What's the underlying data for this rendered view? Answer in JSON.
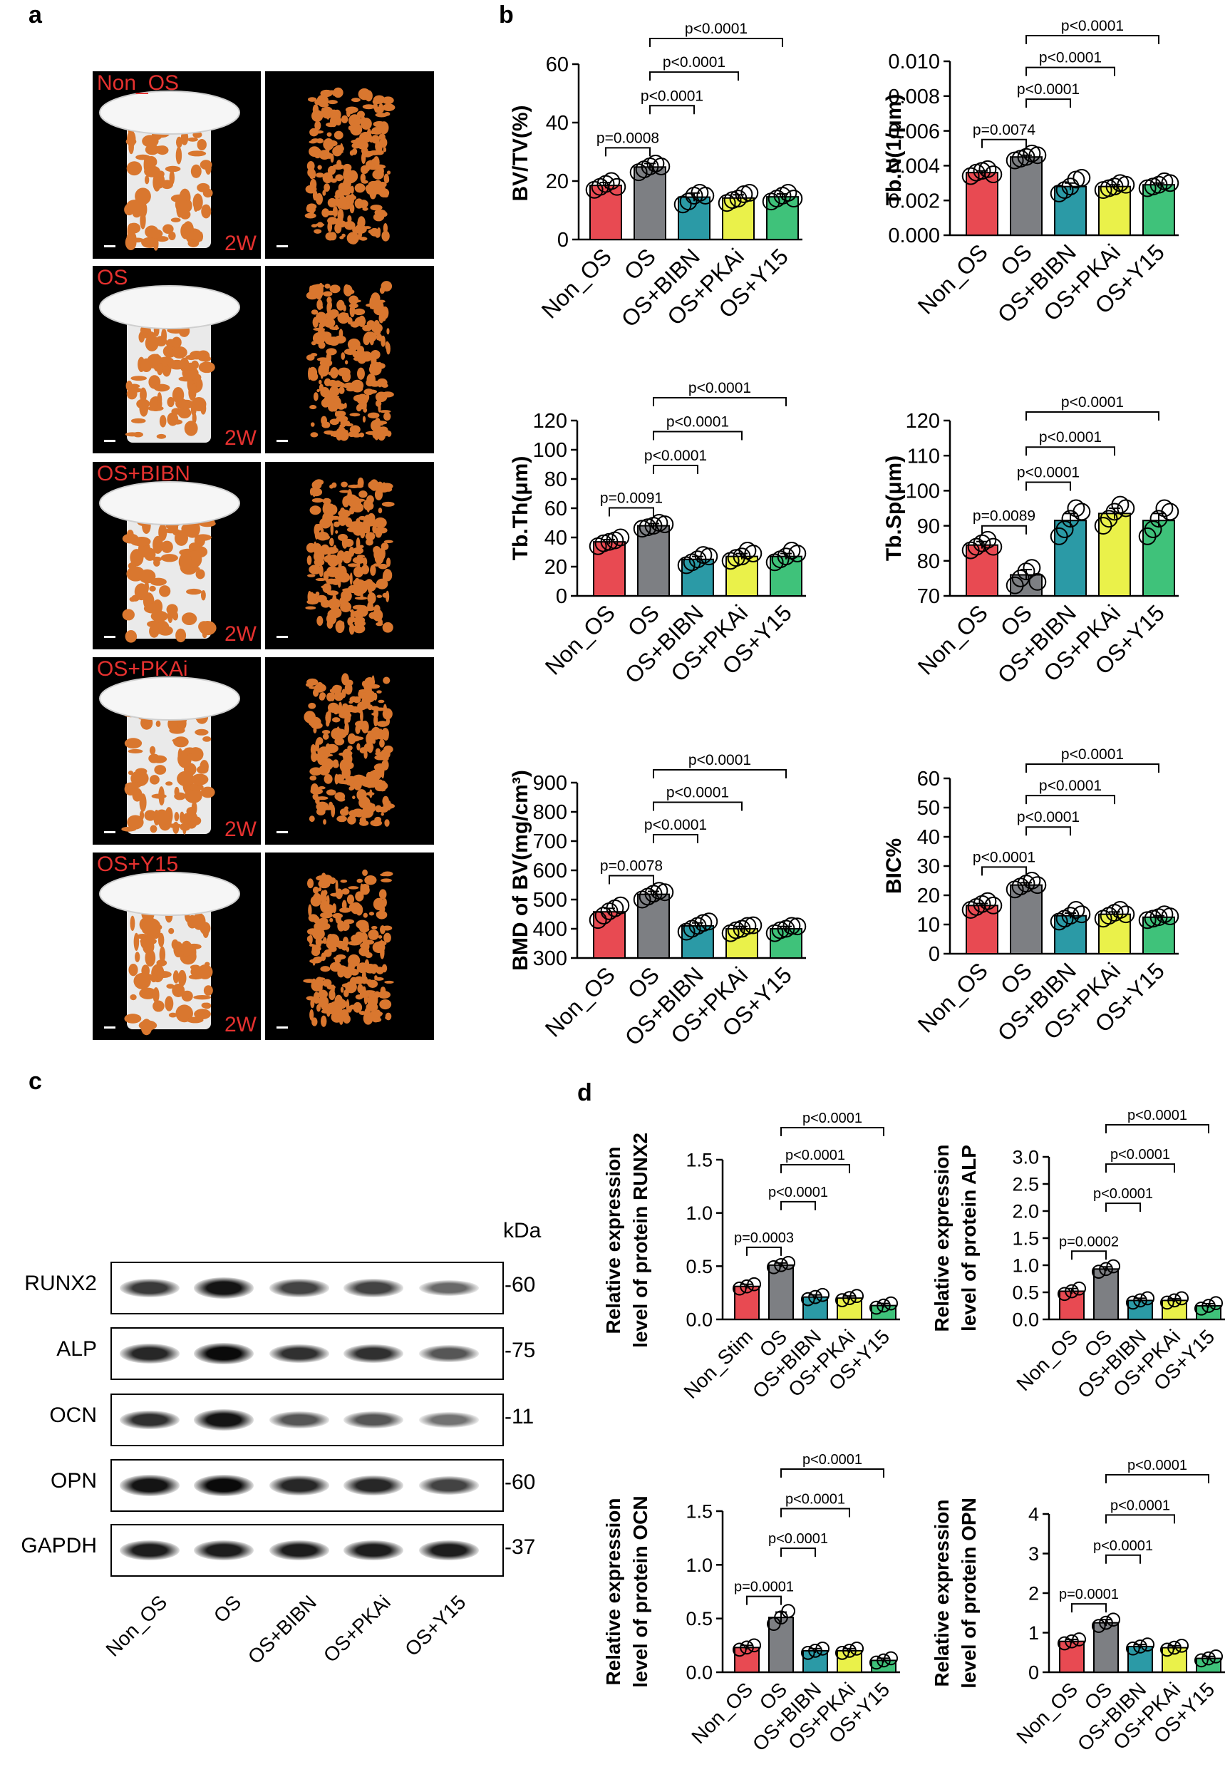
{
  "panels": {
    "a": "a",
    "b": "b",
    "c": "c",
    "d": "d"
  },
  "microct": {
    "time_label": "2W",
    "rows": [
      {
        "label": "Non_OS"
      },
      {
        "label": "OS"
      },
      {
        "label": "OS+BIBN"
      },
      {
        "label": "OS+PKAi"
      },
      {
        "label": "OS+Y15"
      }
    ],
    "colors": {
      "background": "#000000",
      "implant": "#eaeaea",
      "bone": "#d9772f",
      "label": "#e5312f"
    }
  },
  "groups_b": [
    "Non_OS",
    "OS",
    "OS+BIBN",
    "OS+PKAi",
    "OS+Y15"
  ],
  "bar_colors": [
    "#e84a52",
    "#7d7f83",
    "#2b9aa6",
    "#eaf14a",
    "#3fc27a"
  ],
  "chart_data": [
    {
      "type": "bar",
      "panel": "b",
      "id": "bvtv",
      "categories": [
        "Non_OS",
        "OS",
        "OS+BIBN",
        "OS+PKAi",
        "OS+Y15"
      ],
      "values": [
        18.5,
        24.8,
        14.5,
        14.2,
        14.6
      ],
      "errors": [
        1.0,
        1.2,
        1.4,
        1.1,
        1.0
      ],
      "points": [
        [
          17,
          18,
          19,
          20,
          18
        ],
        [
          23,
          24,
          25,
          26,
          25
        ],
        [
          12,
          13,
          15,
          16,
          15
        ],
        [
          12.5,
          13.5,
          14,
          15.5,
          16
        ],
        [
          13,
          14,
          15,
          16,
          14
        ]
      ],
      "ylabel": "BV/TV(%)",
      "ylim": [
        0,
        60
      ],
      "yticks": [
        "0",
        "20",
        "40",
        "60"
      ],
      "brackets": [
        {
          "from": 0,
          "to": 1,
          "text": "p=0.0008"
        },
        {
          "from": 1,
          "to": 2,
          "text": "p<0.0001"
        },
        {
          "from": 1,
          "to": 3,
          "text": "p<0.0001"
        },
        {
          "from": 1,
          "to": 4,
          "text": "p<0.0001"
        }
      ]
    },
    {
      "type": "bar",
      "panel": "b",
      "id": "tbn",
      "categories": [
        "Non_OS",
        "OS",
        "OS+BIBN",
        "OS+PKAi",
        "OS+Y15"
      ],
      "values": [
        0.0036,
        0.0045,
        0.0028,
        0.0028,
        0.0029
      ],
      "errors": [
        0.0001,
        0.0001,
        0.0002,
        0.0001,
        0.0001
      ],
      "points": [
        [
          0.0034,
          0.0036,
          0.0037,
          0.0038,
          0.0035
        ],
        [
          0.0043,
          0.0044,
          0.0045,
          0.0047,
          0.0046
        ],
        [
          0.0024,
          0.0026,
          0.0028,
          0.0032,
          0.0033
        ],
        [
          0.0026,
          0.0027,
          0.0028,
          0.003,
          0.0029
        ],
        [
          0.0027,
          0.0028,
          0.0029,
          0.0031,
          0.003
        ]
      ],
      "ylabel": "Tb.N(1/μm)",
      "ylim": [
        0,
        0.01
      ],
      "yticks": [
        "0.000",
        "0.002",
        "0.004",
        "0.006",
        "0.008",
        "0.010"
      ],
      "brackets": [
        {
          "from": 0,
          "to": 1,
          "text": "p=0.0074"
        },
        {
          "from": 1,
          "to": 2,
          "text": "p<0.0001"
        },
        {
          "from": 1,
          "to": 3,
          "text": "p<0.0001"
        },
        {
          "from": 1,
          "to": 4,
          "text": "p<0.0001"
        }
      ]
    },
    {
      "type": "bar",
      "panel": "b",
      "id": "tbth",
      "categories": [
        "Non_OS",
        "OS",
        "OS+BIBN",
        "OS+PKAi",
        "OS+Y15"
      ],
      "values": [
        37,
        48,
        25,
        27,
        27
      ],
      "errors": [
        1.5,
        1.5,
        2,
        2,
        2
      ],
      "points": [
        [
          34,
          36,
          37,
          38,
          40
        ],
        [
          46,
          47,
          48,
          50,
          49
        ],
        [
          21,
          23,
          25,
          28,
          27
        ],
        [
          24,
          26,
          27,
          31,
          29
        ],
        [
          23,
          25,
          27,
          31,
          29
        ]
      ],
      "ylabel": "Tb.Th(μm)",
      "ylim": [
        0,
        120
      ],
      "yticks": [
        "0",
        "20",
        "40",
        "60",
        "80",
        "100",
        "120"
      ],
      "brackets": [
        {
          "from": 0,
          "to": 1,
          "text": "p=0.0091"
        },
        {
          "from": 1,
          "to": 2,
          "text": "p<0.0001"
        },
        {
          "from": 1,
          "to": 3,
          "text": "p<0.0001"
        },
        {
          "from": 1,
          "to": 4,
          "text": "p<0.0001"
        }
      ]
    },
    {
      "type": "bar",
      "panel": "b",
      "id": "tbsp",
      "categories": [
        "Non_OS",
        "OS",
        "OS+BIBN",
        "OS+PKAi",
        "OS+Y15"
      ],
      "values": [
        84.5,
        76,
        91.5,
        93.5,
        91.5
      ],
      "errors": [
        1,
        1.5,
        2,
        1.5,
        2
      ],
      "points": [
        [
          83,
          84,
          85,
          86,
          84
        ],
        [
          73,
          75,
          77,
          78,
          74
        ],
        [
          87,
          89,
          92,
          95,
          94
        ],
        [
          90,
          92,
          94,
          96,
          95
        ],
        [
          87,
          89,
          92,
          95,
          94
        ]
      ],
      "ylabel": "Tb.Sp(μm)",
      "ylim": [
        70,
        120
      ],
      "yticks": [
        "70",
        "80",
        "90",
        "100",
        "110",
        "120"
      ],
      "brackets": [
        {
          "from": 0,
          "to": 1,
          "text": "p=0.0089"
        },
        {
          "from": 1,
          "to": 2,
          "text": "p<0.0001"
        },
        {
          "from": 1,
          "to": 3,
          "text": "p<0.0001"
        },
        {
          "from": 1,
          "to": 4,
          "text": "p<0.0001"
        }
      ]
    },
    {
      "type": "bar",
      "panel": "b",
      "id": "bmd",
      "categories": [
        "Non_OS",
        "OS",
        "OS+BIBN",
        "OS+PKAi",
        "OS+Y15"
      ],
      "values": [
        458,
        518,
        410,
        400,
        400
      ],
      "errors": [
        12,
        10,
        10,
        8,
        8
      ],
      "points": [
        [
          430,
          445,
          460,
          470,
          480
        ],
        [
          500,
          510,
          520,
          530,
          525
        ],
        [
          390,
          400,
          410,
          420,
          425
        ],
        [
          385,
          395,
          400,
          410,
          412
        ],
        [
          385,
          395,
          400,
          410,
          408
        ]
      ],
      "ylabel": "BMD of BV(mg/cm³)",
      "ylim": [
        300,
        900
      ],
      "yticks": [
        "300",
        "400",
        "500",
        "600",
        "700",
        "800",
        "900"
      ],
      "brackets": [
        {
          "from": 0,
          "to": 1,
          "text": "p=0.0078"
        },
        {
          "from": 1,
          "to": 2,
          "text": "p<0.0001"
        },
        {
          "from": 1,
          "to": 3,
          "text": "p<0.0001"
        },
        {
          "from": 1,
          "to": 4,
          "text": "p<0.0001"
        }
      ]
    },
    {
      "type": "bar",
      "panel": "b",
      "id": "bic",
      "categories": [
        "Non_OS",
        "OS",
        "OS+BIBN",
        "OS+PKAi",
        "OS+Y15"
      ],
      "values": [
        16.5,
        23.5,
        13,
        13.5,
        12.5
      ],
      "errors": [
        0.7,
        0.8,
        0.9,
        0.8,
        0.5
      ],
      "points": [
        [
          15,
          16,
          17,
          18,
          16.5
        ],
        [
          22,
          23,
          24,
          25,
          23.5
        ],
        [
          11,
          12,
          13,
          15,
          13.5
        ],
        [
          12,
          13,
          14,
          15,
          13.5
        ],
        [
          11.5,
          12,
          12.5,
          13.5,
          12.8
        ]
      ],
      "ylabel": "BIC%",
      "ylim": [
        0,
        60
      ],
      "yticks": [
        "0",
        "10",
        "20",
        "30",
        "40",
        "50",
        "60"
      ],
      "brackets": [
        {
          "from": 0,
          "to": 1,
          "text": "p<0.0001"
        },
        {
          "from": 1,
          "to": 2,
          "text": "p<0.0001"
        },
        {
          "from": 1,
          "to": 3,
          "text": "p<0.0001"
        },
        {
          "from": 1,
          "to": 4,
          "text": "p<0.0001"
        }
      ]
    },
    {
      "type": "bar",
      "panel": "d",
      "id": "runx2",
      "categories": [
        "Non_Stim",
        "OS",
        "OS+BIBN",
        "OS+PKAi",
        "OS+Y15"
      ],
      "values": [
        0.31,
        0.51,
        0.21,
        0.2,
        0.13
      ],
      "errors": [
        0.02,
        0.02,
        0.02,
        0.02,
        0.02
      ],
      "points": [
        [
          0.29,
          0.31,
          0.33
        ],
        [
          0.49,
          0.51,
          0.53
        ],
        [
          0.19,
          0.21,
          0.23
        ],
        [
          0.18,
          0.2,
          0.22
        ],
        [
          0.11,
          0.13,
          0.15
        ]
      ],
      "ylabel": [
        "Relative expression",
        "level of protein RUNX2"
      ],
      "ylim": [
        0,
        1.5
      ],
      "yticks": [
        "0.0",
        "0.5",
        "1.0",
        "1.5"
      ],
      "brackets": [
        {
          "from": 0,
          "to": 1,
          "text": "p=0.0003"
        },
        {
          "from": 1,
          "to": 2,
          "text": "p<0.0001"
        },
        {
          "from": 1,
          "to": 3,
          "text": "p<0.0001"
        },
        {
          "from": 1,
          "to": 4,
          "text": "p<0.0001"
        }
      ]
    },
    {
      "type": "bar",
      "panel": "d",
      "id": "alp",
      "categories": [
        "Non_OS",
        "OS",
        "OS+BIBN",
        "OS+PKAi",
        "OS+Y15"
      ],
      "values": [
        0.52,
        0.93,
        0.35,
        0.35,
        0.25
      ],
      "errors": [
        0.05,
        0.04,
        0.04,
        0.03,
        0.04
      ],
      "points": [
        [
          0.47,
          0.52,
          0.57
        ],
        [
          0.88,
          0.93,
          0.98
        ],
        [
          0.31,
          0.35,
          0.39
        ],
        [
          0.31,
          0.35,
          0.39
        ],
        [
          0.2,
          0.25,
          0.3
        ]
      ],
      "ylabel": [
        "Relative expression",
        "level of protein ALP"
      ],
      "ylim": [
        0,
        3.0
      ],
      "yticks": [
        "0.0",
        "0.5",
        "1.0",
        "1.5",
        "2.0",
        "2.5",
        "3.0"
      ],
      "brackets": [
        {
          "from": 0,
          "to": 1,
          "text": "p=0.0002"
        },
        {
          "from": 1,
          "to": 2,
          "text": "p<0.0001"
        },
        {
          "from": 1,
          "to": 3,
          "text": "p<0.0001"
        },
        {
          "from": 1,
          "to": 4,
          "text": "p<0.0001"
        }
      ]
    },
    {
      "type": "bar",
      "panel": "d",
      "id": "ocn",
      "categories": [
        "Non_OS",
        "OS",
        "OS+BIBN",
        "OS+PKAi",
        "OS+Y15"
      ],
      "values": [
        0.23,
        0.51,
        0.2,
        0.2,
        0.11
      ],
      "errors": [
        0.02,
        0.05,
        0.02,
        0.02,
        0.02
      ],
      "points": [
        [
          0.21,
          0.23,
          0.25
        ],
        [
          0.45,
          0.51,
          0.57
        ],
        [
          0.18,
          0.2,
          0.22
        ],
        [
          0.18,
          0.2,
          0.22
        ],
        [
          0.09,
          0.11,
          0.13
        ]
      ],
      "ylabel": [
        "Relative expression",
        "level of protein OCN"
      ],
      "ylim": [
        0,
        1.5
      ],
      "yticks": [
        "0.0",
        "0.5",
        "1.0",
        "1.5"
      ],
      "brackets": [
        {
          "from": 0,
          "to": 1,
          "text": "p=0.0001"
        },
        {
          "from": 1,
          "to": 2,
          "text": "p<0.0001"
        },
        {
          "from": 1,
          "to": 3,
          "text": "p<0.0001"
        },
        {
          "from": 1,
          "to": 4,
          "text": "p<0.0001"
        }
      ]
    },
    {
      "type": "bar",
      "panel": "d",
      "id": "opn",
      "categories": [
        "Non_OS",
        "OS",
        "OS+BIBN",
        "OS+PKAi",
        "OS+Y15"
      ],
      "values": [
        0.78,
        1.25,
        0.65,
        0.62,
        0.35
      ],
      "errors": [
        0.05,
        0.08,
        0.05,
        0.05,
        0.05
      ],
      "points": [
        [
          0.73,
          0.78,
          0.83
        ],
        [
          1.17,
          1.25,
          1.33
        ],
        [
          0.6,
          0.65,
          0.7
        ],
        [
          0.57,
          0.62,
          0.67
        ],
        [
          0.3,
          0.35,
          0.4
        ]
      ],
      "ylabel": [
        "Relative expression",
        "level of protein OPN"
      ],
      "ylim": [
        0,
        4
      ],
      "yticks": [
        "0",
        "1",
        "2",
        "3",
        "4"
      ],
      "brackets": [
        {
          "from": 0,
          "to": 1,
          "text": "p=0.0001"
        },
        {
          "from": 1,
          "to": 2,
          "text": "p<0.0001"
        },
        {
          "from": 1,
          "to": 3,
          "text": "p<0.0001"
        },
        {
          "from": 1,
          "to": 4,
          "text": "p<0.0001"
        }
      ]
    }
  ],
  "western_blot": {
    "unit": "kDa",
    "lanes": [
      "Non_OS",
      "OS",
      "OS+BIBN",
      "OS+PKAi",
      "OS+Y15"
    ],
    "proteins": [
      {
        "name": "RUNX2",
        "mw": "-60",
        "intensity": [
          0.75,
          0.95,
          0.7,
          0.7,
          0.5
        ]
      },
      {
        "name": "ALP",
        "mw": "-75",
        "intensity": [
          0.85,
          1.0,
          0.8,
          0.8,
          0.6
        ]
      },
      {
        "name": "OCN",
        "mw": "-11",
        "intensity": [
          0.8,
          0.95,
          0.6,
          0.6,
          0.45
        ]
      },
      {
        "name": "OPN",
        "mw": "-60",
        "intensity": [
          0.95,
          1.0,
          0.85,
          0.85,
          0.7
        ]
      },
      {
        "name": "GAPDH",
        "mw": "-37",
        "intensity": [
          0.9,
          0.9,
          0.9,
          0.9,
          0.9
        ]
      }
    ]
  }
}
